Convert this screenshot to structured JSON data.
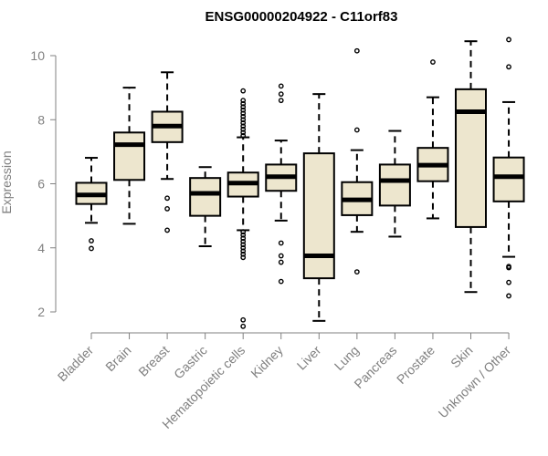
{
  "chart_data": {
    "type": "box",
    "title": "ENSG00000204922 - C11orf83",
    "xlabel": "",
    "ylabel": "Expression",
    "ylim": [
      1.5,
      10.7
    ],
    "yticks": [
      2,
      4,
      6,
      8,
      10
    ],
    "grid": false,
    "box_fill": "#ede6ce",
    "categories": [
      "Bladder",
      "Brain",
      "Breast",
      "Gastric",
      "Hematopoietic cells",
      "Kidney",
      "Liver",
      "Lung",
      "Pancreas",
      "Prostate",
      "Skin",
      "Unknown / Other"
    ],
    "boxes": [
      {
        "category": "Bladder",
        "whisker_low": 4.78,
        "q1": 5.37,
        "median": 5.65,
        "q3": 6.03,
        "whisker_high": 6.81,
        "outliers": [
          4.22,
          3.98
        ]
      },
      {
        "category": "Brain",
        "whisker_low": 4.75,
        "q1": 6.12,
        "median": 7.22,
        "q3": 7.6,
        "whisker_high": 9.0,
        "outliers": []
      },
      {
        "category": "Breast",
        "whisker_low": 6.15,
        "q1": 7.3,
        "median": 7.8,
        "q3": 8.25,
        "whisker_high": 9.48,
        "outliers": [
          5.55,
          5.22,
          4.55
        ]
      },
      {
        "category": "Gastric",
        "whisker_low": 4.05,
        "q1": 5.0,
        "median": 5.7,
        "q3": 6.18,
        "whisker_high": 6.52,
        "outliers": []
      },
      {
        "category": "Hematopoietic cells",
        "whisker_low": 4.55,
        "q1": 5.6,
        "median": 6.02,
        "q3": 6.35,
        "whisker_high": 7.45,
        "outliers": [
          8.9,
          8.6,
          8.5,
          8.4,
          8.3,
          8.2,
          8.1,
          8.0,
          7.9,
          7.8,
          7.7,
          7.6,
          7.5,
          4.5,
          4.4,
          4.3,
          4.2,
          4.1,
          4.0,
          3.9,
          3.8,
          3.7,
          1.75,
          1.55
        ]
      },
      {
        "category": "Kidney",
        "whisker_low": 4.85,
        "q1": 5.78,
        "median": 6.22,
        "q3": 6.6,
        "whisker_high": 7.35,
        "outliers": [
          9.05,
          8.8,
          8.6,
          4.15,
          3.75,
          3.55,
          2.95
        ]
      },
      {
        "category": "Liver",
        "whisker_low": 1.72,
        "q1": 3.05,
        "median": 3.75,
        "q3": 6.95,
        "whisker_high": 8.8,
        "outliers": []
      },
      {
        "category": "Lung",
        "whisker_low": 4.5,
        "q1": 5.02,
        "median": 5.5,
        "q3": 6.05,
        "whisker_high": 7.05,
        "outliers": [
          10.15,
          7.68,
          3.25
        ]
      },
      {
        "category": "Pancreas",
        "whisker_low": 4.35,
        "q1": 5.32,
        "median": 6.1,
        "q3": 6.6,
        "whisker_high": 7.65,
        "outliers": []
      },
      {
        "category": "Prostate",
        "whisker_low": 4.92,
        "q1": 6.08,
        "median": 6.58,
        "q3": 7.12,
        "whisker_high": 8.7,
        "outliers": [
          9.8
        ]
      },
      {
        "category": "Skin",
        "whisker_low": 2.62,
        "q1": 4.65,
        "median": 8.25,
        "q3": 8.95,
        "whisker_high": 10.45,
        "outliers": []
      },
      {
        "category": "Unknown / Other",
        "whisker_low": 3.72,
        "q1": 5.45,
        "median": 6.22,
        "q3": 6.82,
        "whisker_high": 8.55,
        "outliers": [
          10.5,
          9.65,
          3.42,
          3.38,
          2.92,
          2.5
        ]
      }
    ]
  }
}
